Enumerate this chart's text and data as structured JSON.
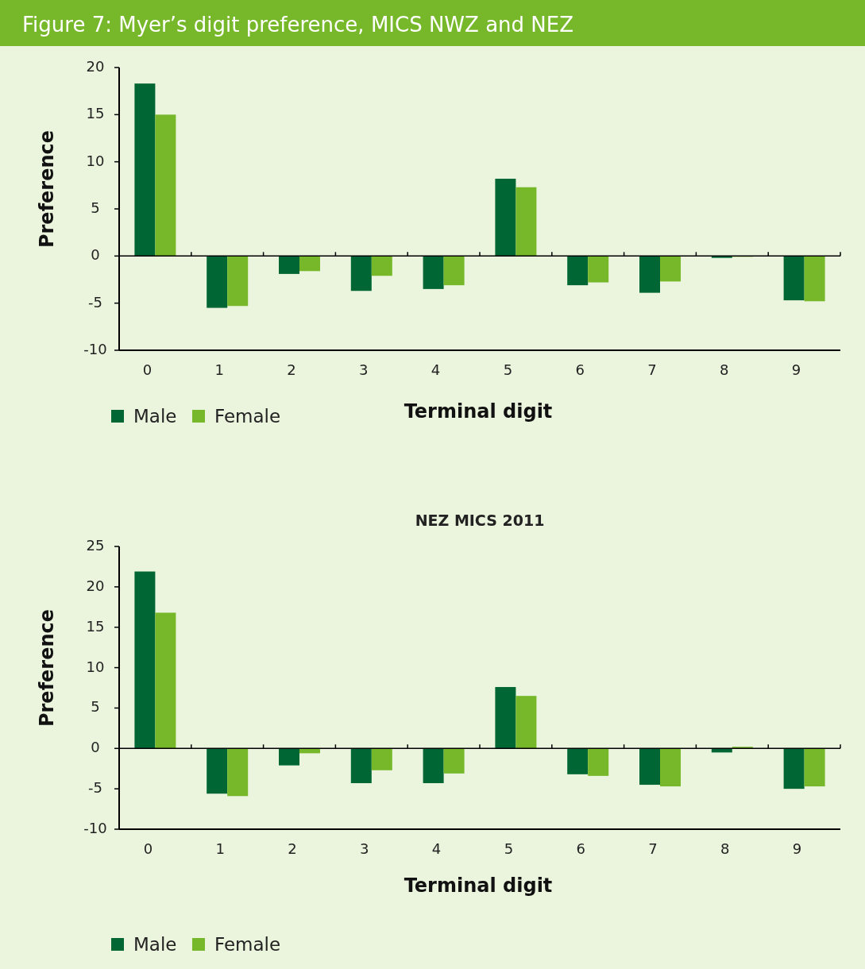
{
  "chart_data": [
    {
      "type": "bar",
      "title": "Figure 7: Myer’s digit preference, MICS NWZ and NEZ",
      "xlabel": "Terminal digit",
      "ylabel": "Preference",
      "categories": [
        "0",
        "1",
        "2",
        "3",
        "4",
        "5",
        "6",
        "7",
        "8",
        "9"
      ],
      "series": [
        {
          "name": "Male",
          "color": "#006633",
          "values": [
            18.3,
            -5.5,
            -1.9,
            -3.7,
            -3.5,
            8.2,
            -3.1,
            -3.9,
            -0.2,
            -4.7
          ]
        },
        {
          "name": "Female",
          "color": "#76b82a",
          "values": [
            15.0,
            -5.3,
            -1.6,
            -2.1,
            -3.1,
            7.3,
            -2.8,
            -2.7,
            0,
            -4.8
          ]
        }
      ],
      "ylim": [
        -10,
        20
      ],
      "yticks": [
        -10,
        -5,
        0,
        5,
        10,
        15,
        20
      ],
      "legend": "bottom left"
    },
    {
      "type": "bar",
      "title": "NEZ MICS 2011",
      "xlabel": "Terminal digit",
      "ylabel": "Preference",
      "categories": [
        "0",
        "1",
        "2",
        "3",
        "4",
        "5",
        "6",
        "7",
        "8",
        "9"
      ],
      "series": [
        {
          "name": "Male",
          "color": "#006633",
          "values": [
            21.9,
            -5.6,
            -2.1,
            -4.3,
            -4.3,
            7.6,
            -3.2,
            -4.5,
            -0.5,
            -5.0
          ]
        },
        {
          "name": "Female",
          "color": "#76b82a",
          "values": [
            16.8,
            -5.9,
            -0.6,
            -2.7,
            -3.1,
            6.5,
            -3.4,
            -4.7,
            0.2,
            -4.7
          ]
        }
      ],
      "ylim": [
        -10,
        25
      ],
      "yticks": [
        -10,
        -5,
        0,
        5,
        10,
        15,
        20,
        25
      ],
      "legend": "bottom left"
    }
  ]
}
